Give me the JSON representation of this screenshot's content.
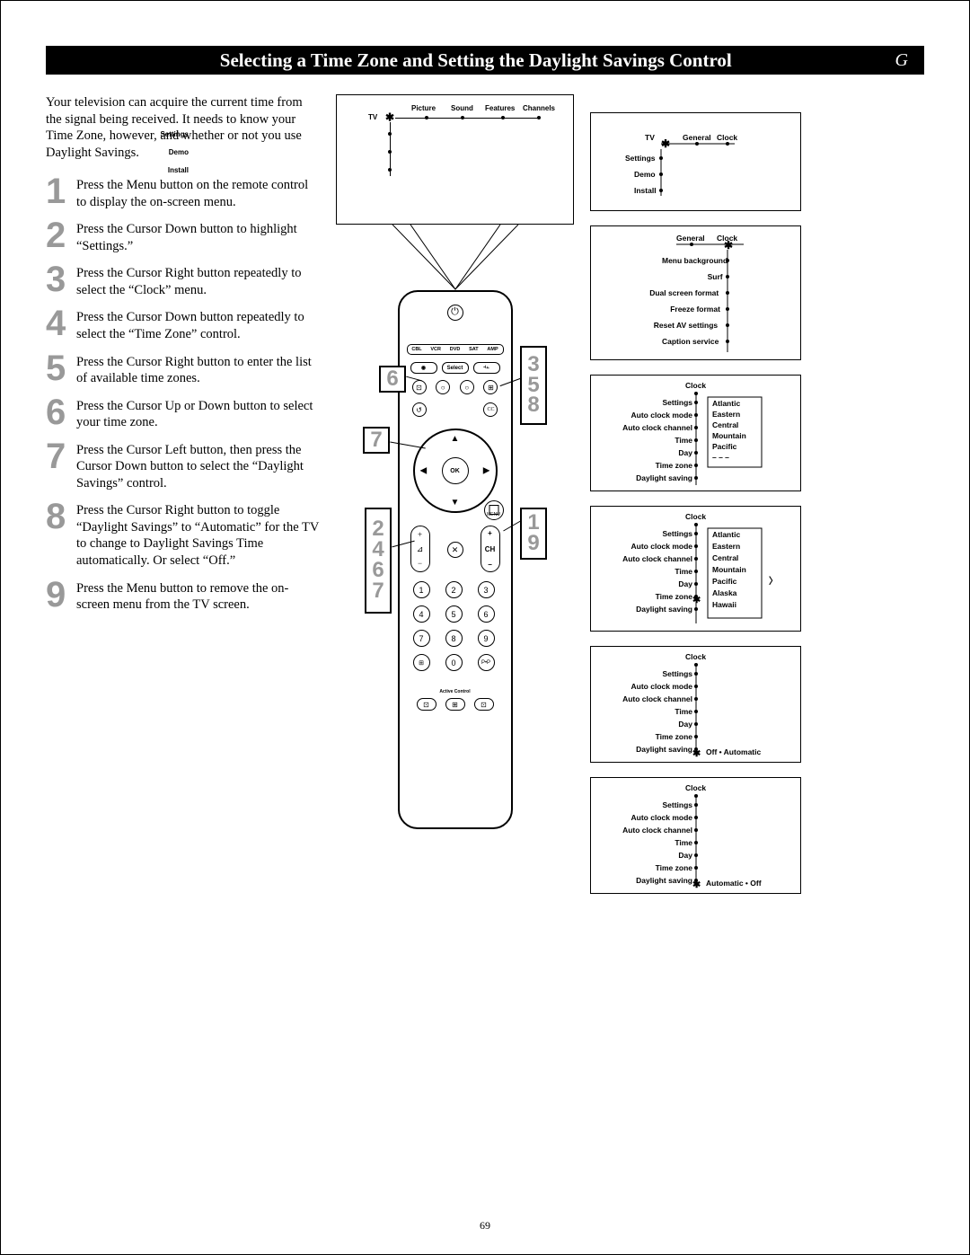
{
  "title": "Selecting a Time Zone and Setting the Daylight Savings Control",
  "title_letter": "G",
  "page_number": "69",
  "intro": "Your television can acquire the current time from the signal being received. It needs to know your Time Zone, however, and whether or not you use Daylight Savings.",
  "steps": [
    {
      "n": "1",
      "t": "Press the Menu button on the remote control to display the on-screen menu."
    },
    {
      "n": "2",
      "t": "Press the Cursor Down button to highlight “Settings.”"
    },
    {
      "n": "3",
      "t": "Press the Cursor Right button repeatedly to select the “Clock” menu."
    },
    {
      "n": "4",
      "t": "Press the Cursor Down button repeatedly to select the “Time Zone” control."
    },
    {
      "n": "5",
      "t": "Press the Cursor Right button to enter the list of available time zones."
    },
    {
      "n": "6",
      "t": "Press the Cursor Up or Down button to select your time zone."
    },
    {
      "n": "7",
      "t": "Press the Cursor Left button, then press the Cursor Down button to select the “Daylight Savings” control."
    },
    {
      "n": "8",
      "t": "Press the Cursor Right button to toggle “Daylight Savings” to “Automatic” for the TV to change to Daylight Savings Time automatically. Or select “Off.”"
    },
    {
      "n": "9",
      "t": "Press the Menu button to remove the on-screen menu from the TV screen."
    }
  ],
  "remote": {
    "modes": [
      "CBL",
      "VCR",
      "DVD",
      "SAT",
      "AMP"
    ],
    "ok": "OK",
    "ch": "CH",
    "menu": "MENU",
    "ac": "Active Control"
  },
  "tv_menu": {
    "top": [
      "Picture",
      "Sound",
      "Features",
      "Channels"
    ],
    "left_root": "TV",
    "left": [
      "Settings",
      "Demo",
      "Install"
    ]
  },
  "box1": {
    "root": "TV",
    "items": [
      "Settings",
      "Demo",
      "Install"
    ],
    "right": [
      "General",
      "Clock"
    ]
  },
  "box2": {
    "top": [
      "General",
      "Clock"
    ],
    "items": [
      "Menu background",
      "Surf",
      "Dual screen format",
      "Freeze format",
      "Reset AV settings",
      "Caption service"
    ]
  },
  "box3": {
    "header": "Clock",
    "left": [
      "Settings",
      "Auto clock mode",
      "Auto clock channel",
      "Time",
      "Day",
      "Time zone",
      "Daylight saving"
    ],
    "right": [
      "Atlantic",
      "Eastern",
      "Central",
      "Mountain",
      "Pacific",
      "– – –"
    ]
  },
  "box4": {
    "header": "Clock",
    "left": [
      "Settings",
      "Auto clock mode",
      "Auto clock channel",
      "Time",
      "Day",
      "Time zone",
      "Daylight saving"
    ],
    "right": [
      "Atlantic",
      "Eastern",
      "Central",
      "Mountain",
      "Pacific",
      "Alaska",
      "Hawaii"
    ],
    "cursor_on": "Time zone",
    "cursor_right": "Pacific"
  },
  "box5": {
    "header": "Clock",
    "left": [
      "Settings",
      "Auto clock mode",
      "Auto clock channel",
      "Time",
      "Day",
      "Time zone",
      "Daylight saving"
    ],
    "right_label": "Off • Automatic"
  },
  "box6": {
    "header": "Clock",
    "left": [
      "Settings",
      "Auto clock mode",
      "Auto clock channel",
      "Time",
      "Day",
      "Time zone",
      "Daylight saving"
    ],
    "right_label": "Automatic • Off"
  },
  "callouts_left": [
    "2",
    "4",
    "6",
    "7"
  ],
  "callouts_right_top": [
    "3",
    "5",
    "8"
  ],
  "callouts_right_bot": [
    "1",
    "9"
  ]
}
